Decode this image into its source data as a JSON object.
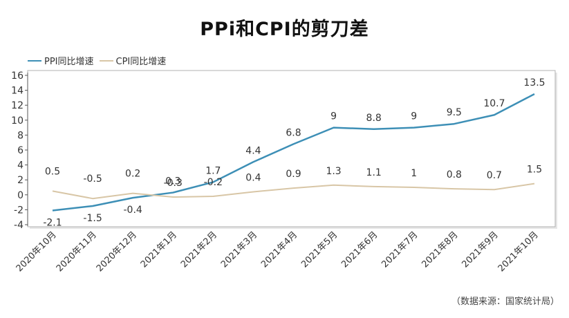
{
  "title": "PPi和CPI的剪刀差",
  "source_note": "（数据来源：国家统计局）",
  "colors": {
    "ppi": "#3d8fb6",
    "cpi": "#d8c6a6",
    "frame": "#b0b0b0",
    "text": "#333333"
  },
  "chart_data": {
    "type": "line",
    "title": "PPi和CPI的剪刀差",
    "x": [
      "2020年10月",
      "2020年11月",
      "2020年12月",
      "2021年1月",
      "2021年2月",
      "2021年3月",
      "2021年4月",
      "2021年5月",
      "2021年6月",
      "2021年7月",
      "2021年8月",
      "2021年9月",
      "2021年10月"
    ],
    "series": [
      {
        "name": "PPI同比增速",
        "values": [
          -2.1,
          -1.5,
          -0.4,
          0.3,
          1.7,
          4.4,
          6.8,
          9,
          8.8,
          9,
          9.5,
          10.7,
          13.5
        ]
      },
      {
        "name": "CPI同比增速",
        "values": [
          0.5,
          -0.5,
          0.2,
          -0.3,
          -0.2,
          0.4,
          0.9,
          1.3,
          1.1,
          1,
          0.8,
          0.7,
          1.5
        ]
      }
    ],
    "ylim": [
      -4,
      16
    ],
    "yticks": [
      -4,
      -2,
      0,
      2,
      4,
      6,
      8,
      10,
      12,
      14,
      16
    ],
    "legend_position": "top-left",
    "grid": false
  }
}
